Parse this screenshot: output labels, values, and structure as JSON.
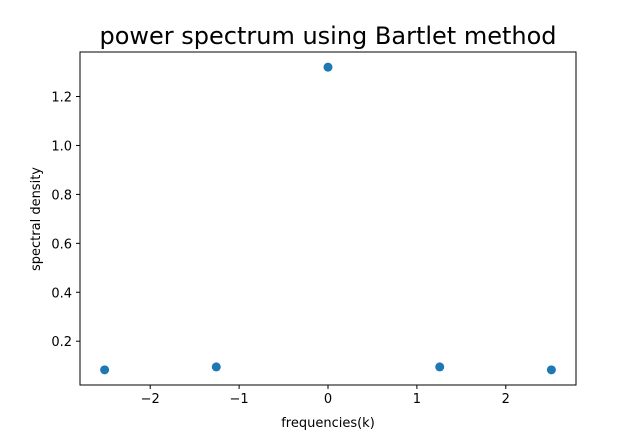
{
  "chart_data": {
    "type": "scatter",
    "title": "power spectrum using Bartlet method",
    "xlabel": "frequencies(k)",
    "ylabel": "spectral density",
    "xlim": [
      -2.79,
      2.79
    ],
    "ylim": [
      0.021,
      1.382
    ],
    "x_ticks": [
      -2,
      -1,
      0,
      1,
      2
    ],
    "x_tick_labels": [
      "−2",
      "−1",
      "0",
      "1",
      "2"
    ],
    "y_ticks": [
      0.2,
      0.4,
      0.6,
      0.8,
      1.0,
      1.2
    ],
    "y_tick_labels": [
      "0.2",
      "0.4",
      "0.6",
      "0.8",
      "1.0",
      "1.2"
    ],
    "grid": false,
    "series": [
      {
        "color": "#1f77b4",
        "points": [
          {
            "x": -2.513,
            "y": 0.083
          },
          {
            "x": -1.257,
            "y": 0.095
          },
          {
            "x": 0.0,
            "y": 1.32
          },
          {
            "x": 1.257,
            "y": 0.095
          },
          {
            "x": 2.513,
            "y": 0.083
          }
        ]
      }
    ]
  }
}
